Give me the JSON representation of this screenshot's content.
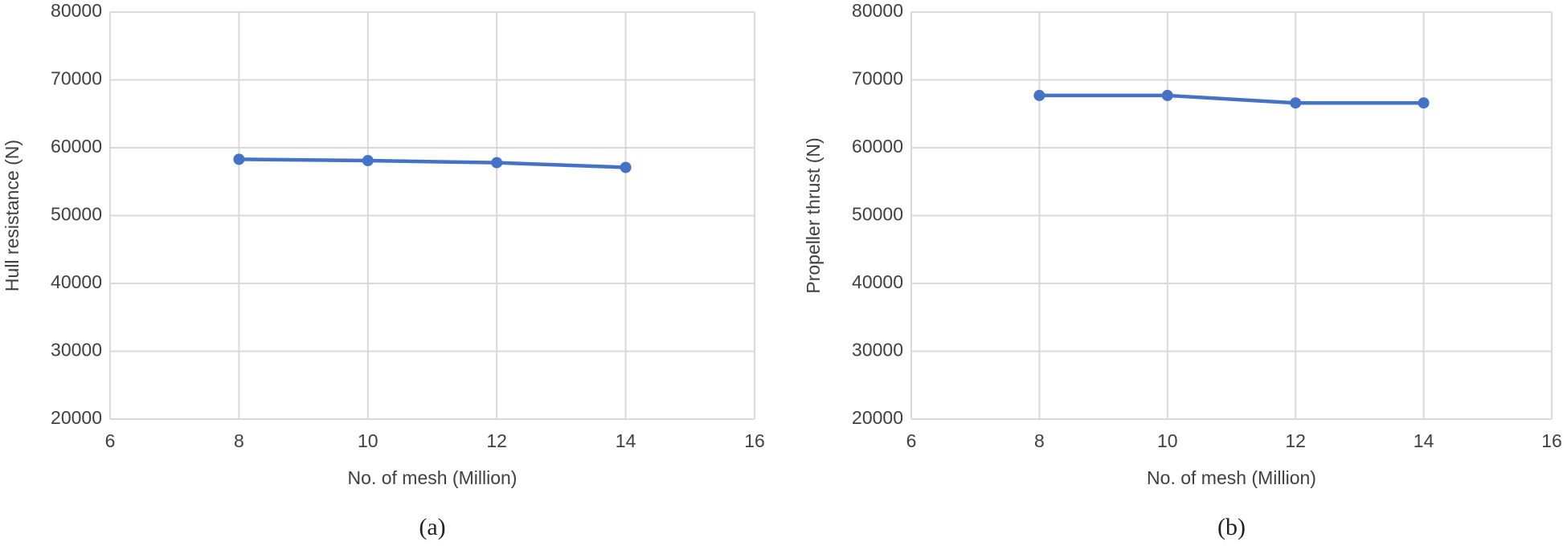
{
  "chart_data": [
    {
      "type": "line",
      "caption": "(a)",
      "xlabel": "No. of mesh (Million)",
      "ylabel": "Hull resistance (N)",
      "x": [
        8,
        10,
        12,
        14
      ],
      "values": [
        58300,
        58100,
        57800,
        57100
      ],
      "color": "#4472c4",
      "xlim": [
        6,
        16
      ],
      "xticks": [
        6,
        8,
        10,
        12,
        14,
        16
      ],
      "ylim": [
        20000,
        80000
      ],
      "yticks": [
        20000,
        30000,
        40000,
        50000,
        60000,
        70000,
        80000
      ],
      "grid": true
    },
    {
      "type": "line",
      "caption": "(b)",
      "xlabel": "No. of mesh (Million)",
      "ylabel": "Propeller thrust (N)",
      "x": [
        8,
        10,
        12,
        14
      ],
      "values": [
        67700,
        67700,
        66600,
        66600
      ],
      "color": "#4472c4",
      "xlim": [
        6,
        16
      ],
      "xticks": [
        6,
        8,
        10,
        12,
        14,
        16
      ],
      "ylim": [
        20000,
        80000
      ],
      "yticks": [
        20000,
        30000,
        40000,
        50000,
        60000,
        70000,
        80000
      ],
      "grid": true
    }
  ]
}
